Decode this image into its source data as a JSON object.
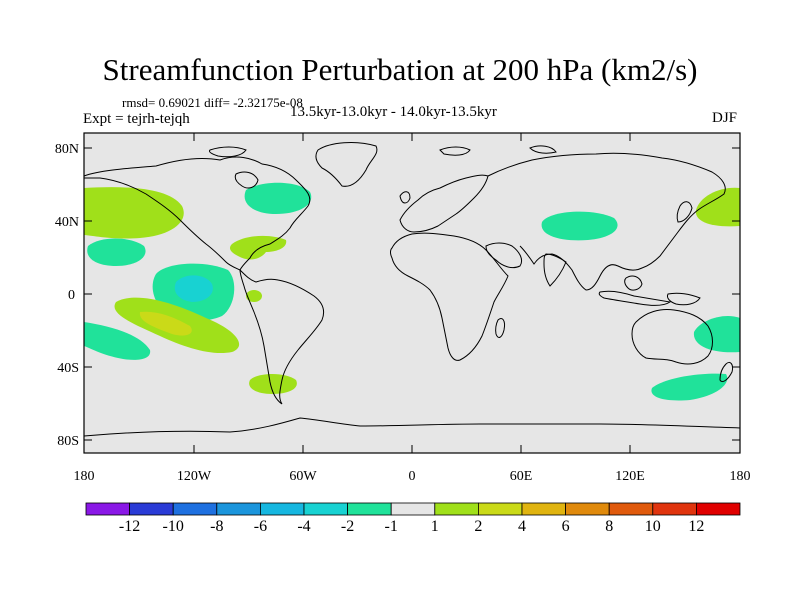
{
  "title": "Streamfunction Perturbation at 200 hPa (km2/s)",
  "stats": "rmsd= 0.69021 diff= -2.32175e-08",
  "experiment": "Expt = tejrh-tejqh",
  "period": "13.5kyr-13.0kyr - 14.0kyr-13.5kyr",
  "season": "DJF",
  "lat_ticks": [
    "80N",
    "40N",
    "0",
    "40S",
    "80S"
  ],
  "lon_ticks": [
    "180",
    "120W",
    "60W",
    "0",
    "60E",
    "120E",
    "180"
  ],
  "colorbar": {
    "labels": [
      "-12",
      "-10",
      "-8",
      "-6",
      "-4",
      "-2",
      "-1",
      "1",
      "2",
      "4",
      "6",
      "8",
      "10",
      "12"
    ],
    "colors": [
      "#8a18e6",
      "#2a3bd6",
      "#1e70e0",
      "#1b95dc",
      "#16b7e0",
      "#18d2d2",
      "#20e29a",
      "#e6e6e6",
      "#a0e01a",
      "#cada18",
      "#e0b410",
      "#e08a0c",
      "#e05a0c",
      "#e0340e",
      "#e00000"
    ]
  },
  "anomalies": [
    {
      "region": "North Pacific west lobe",
      "value_range": "1 to 2"
    },
    {
      "region": "North America east",
      "value_range": "-2 to -1"
    },
    {
      "region": "Gulf of Mexico",
      "value_range": "1 to 2"
    },
    {
      "region": "North Pacific subtropical",
      "value_range": "-2 to -1"
    },
    {
      "region": "Equatorial Pacific",
      "value_range": "-4 to -2"
    },
    {
      "region": "South Pacific",
      "value_range": "2 to 4"
    },
    {
      "region": "South Pacific west",
      "value_range": "-2 to -1"
    },
    {
      "region": "Southern South America",
      "value_range": "1 to 2"
    },
    {
      "region": "Central Asia",
      "value_range": "-2 to -1"
    },
    {
      "region": "Far North Pacific east",
      "value_range": "1 to 2"
    },
    {
      "region": "Australia east",
      "value_range": "-2 to -1"
    },
    {
      "region": "South of New Zealand",
      "value_range": "-2 to -1"
    }
  ]
}
